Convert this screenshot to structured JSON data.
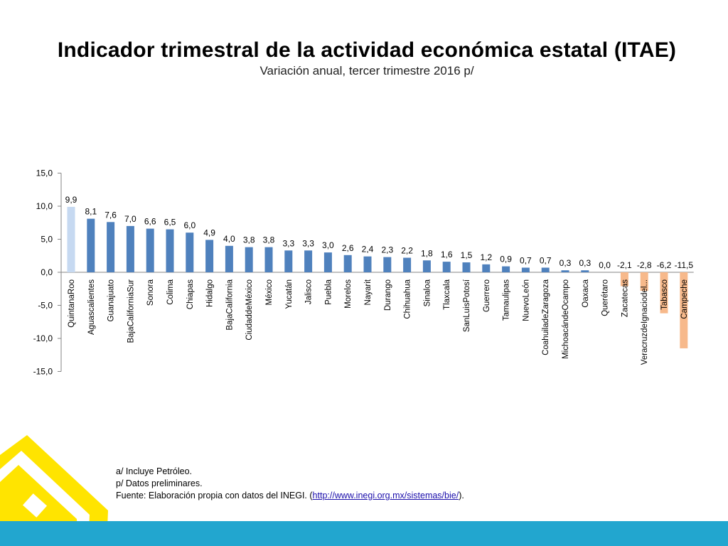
{
  "header": {
    "title": "Indicador trimestral de la actividad económica estatal (ITAE)",
    "subtitle": "Variación anual, tercer trimestre 2016 p/"
  },
  "notes": {
    "line1": "a/ Incluye Petróleo.",
    "line2": "p/ Datos preliminares.",
    "source_prefix": "Fuente: Elaboración propia con datos del INEGI. (",
    "source_link": "http://www.inegi.org.mx/sistemas/bie/",
    "source_suffix": ")."
  },
  "colors": {
    "bar_default": "#4f81bd",
    "bar_highlight_first": "#c6d9f1",
    "bar_negative": "#f7b98b",
    "axis": "#868686",
    "band": "#22a6cf",
    "logo_yellow": "#ffe400"
  },
  "chart_data": {
    "type": "bar",
    "title": "",
    "xlabel": "",
    "ylabel": "",
    "ylim": [
      -15,
      15
    ],
    "yticks": [
      "15,0",
      "10,0",
      "5,0",
      "0,0",
      "-5,0",
      "-10,0",
      "-15,0"
    ],
    "ytick_values": [
      15,
      10,
      5,
      0,
      -5,
      -10,
      -15
    ],
    "categories": [
      "QuintanaRoo",
      "Aguascalientes",
      "Guanajuato",
      "BajaCaliforniaSur",
      "Sonora",
      "Colima",
      "Chiapas",
      "Hidalgo",
      "BajaCalifornia",
      "CiudaddeMéxico",
      "México",
      "Yucatán",
      "Jalisco",
      "Puebla",
      "Morelos",
      "Nayarit",
      "Durango",
      "Chihuahua",
      "Sinaloa",
      "Tlaxcala",
      "SanLuisPotosí",
      "Guerrero",
      "Tamaulipas",
      "NuevoLeón",
      "CoahuiladeZaragoza",
      "MichoacándeOcampo",
      "Oaxaca",
      "Querétaro",
      "Zacatecas",
      "VeracruzdeIgnaciodel...",
      "Tabasco",
      "Campeche"
    ],
    "values": [
      9.9,
      8.1,
      7.6,
      7.0,
      6.6,
      6.5,
      6.0,
      4.9,
      4.0,
      3.8,
      3.8,
      3.3,
      3.3,
      3.0,
      2.6,
      2.4,
      2.3,
      2.2,
      1.8,
      1.6,
      1.5,
      1.2,
      0.9,
      0.7,
      0.7,
      0.3,
      0.3,
      0.0,
      -2.1,
      -2.8,
      -6.2,
      -11.5
    ],
    "value_labels": [
      "9,9",
      "8,1",
      "7,6",
      "7,0",
      "6,6",
      "6,5",
      "6,0",
      "4,9",
      "4,0",
      "3,8",
      "3,8",
      "3,3",
      "3,3",
      "3,0",
      "2,6",
      "2,4",
      "2,3",
      "2,2",
      "1,8",
      "1,6",
      "1,5",
      "1,2",
      "0,9",
      "0,7",
      "0,7",
      "0,3",
      "0,3",
      "0,0",
      "-2,1",
      "-2,8",
      "-6,2",
      "-11,5"
    ],
    "grid": false,
    "legend": "none"
  }
}
